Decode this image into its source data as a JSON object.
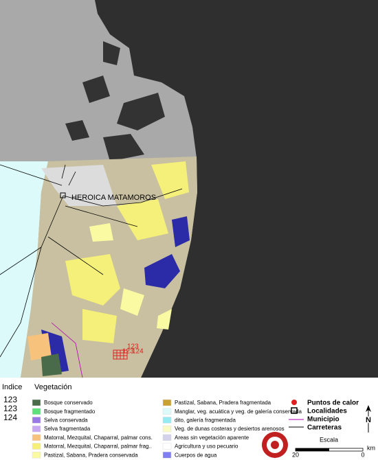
{
  "map": {
    "place_label": "HEROICA MATAMOROS",
    "hotspot_labels": [
      "123",
      "123",
      "124"
    ]
  },
  "legend": {
    "index_header": "Indice",
    "vegetation_header": "Vegetación",
    "index_values": [
      "123",
      "123",
      "124"
    ],
    "vegetation_left": [
      {
        "label": "Bosque conservado",
        "color": "#4a6b4a"
      },
      {
        "label": "Bosque fragmentado",
        "color": "#5ee07c"
      },
      {
        "label": "Selva conservada",
        "color": "#9a78e6"
      },
      {
        "label": "Selva fragmentada",
        "color": "#c7a9f2"
      },
      {
        "label": "Matorral, Mezquital, Chaparral, palmar cons.",
        "color": "#f6c27c"
      },
      {
        "label": "Matorral, Mezquital, Chaparral, palmar frag..",
        "color": "#f4f07a"
      },
      {
        "label": "Pastizal, Sabana, Pradera conservada",
        "color": "#fafaa2"
      }
    ],
    "vegetation_right": [
      {
        "label": "Pastizal, Sabana, Pradera fragmentada",
        "color": "#c9a132"
      },
      {
        "label": "Manglar, veg. acuática y veg. de galería conservada",
        "color": "#dcfafa"
      },
      {
        "label": "dito, galería fragmentada",
        "color": "#96eaf2"
      },
      {
        "label": "Veg. de dunas costeras y desiertos arenosos",
        "color": "#fafac4"
      },
      {
        "label": "Areas sin vegetación aparente",
        "color": "#d2d2ea"
      },
      {
        "label": "Agricultura y uso pecuario",
        "color": "#ffffff"
      },
      {
        "label": "Cuerpos de agua",
        "color": "#7f7ff2"
      }
    ],
    "symbols": [
      "Puntos de calor",
      "Localidades",
      "Municipio",
      "Carreteras"
    ],
    "scale": {
      "title": "Escala",
      "start": "20",
      "end": "0",
      "unit": "km"
    },
    "north": "N"
  }
}
